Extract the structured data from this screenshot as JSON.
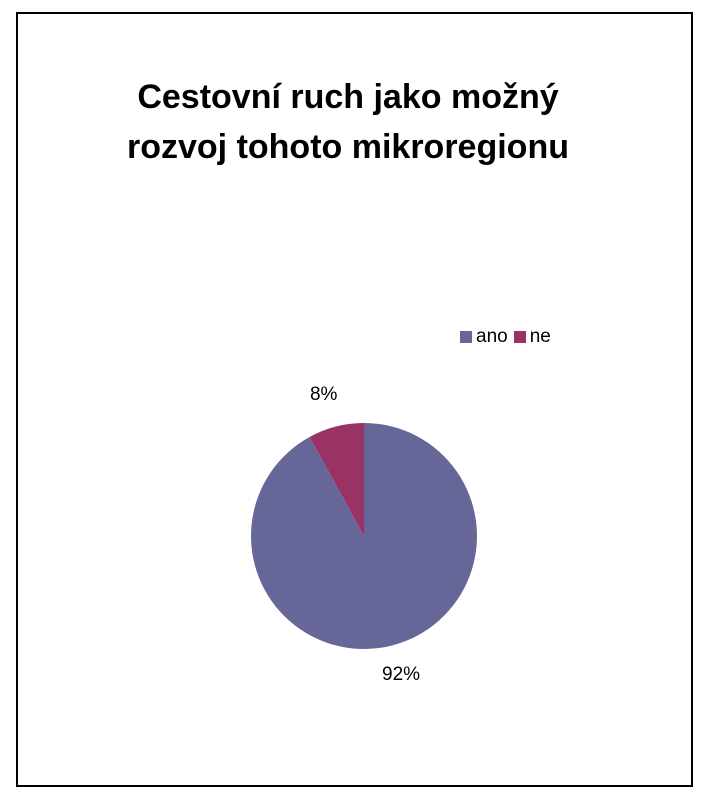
{
  "chart_data": {
    "type": "pie",
    "title_lines": [
      "Cestovní ruch jako možný",
      "rozvoj tohoto mikroregionu"
    ],
    "categories": [
      "ano",
      "ne"
    ],
    "values": [
      92,
      8
    ],
    "data_labels": [
      "92%",
      "8%"
    ],
    "colors": [
      "#666699",
      "#993366"
    ],
    "legend_position": "top-right"
  }
}
